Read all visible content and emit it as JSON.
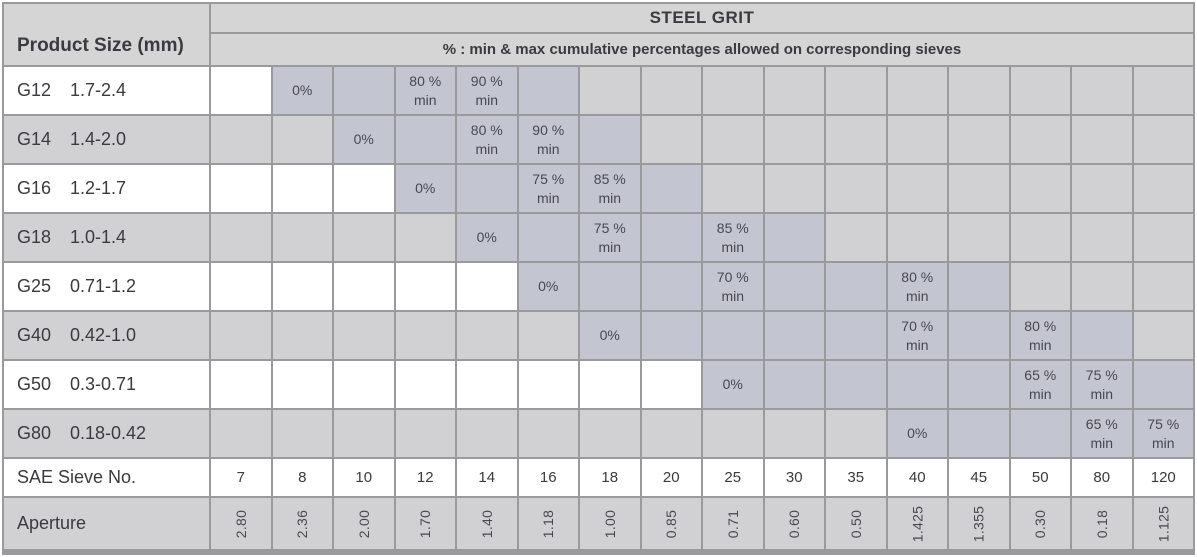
{
  "header": {
    "corner_label": "Product Size (mm)",
    "title": "STEEL GRIT",
    "subtitle": "% : min & max cumulative percentages allowed on corresponding sieves"
  },
  "rows": [
    {
      "grade": "G12",
      "range": "1.7-2.4",
      "stripe": "white",
      "cells": [
        {
          "s": "white"
        },
        {
          "s": "on",
          "text": "0%"
        },
        {
          "s": "on"
        },
        {
          "s": "on",
          "text": "80 %\nmin"
        },
        {
          "s": "on",
          "text": "90 %\nmin"
        },
        {
          "s": "on"
        },
        {
          "s": "off"
        },
        {
          "s": "off"
        },
        {
          "s": "off"
        },
        {
          "s": "off"
        },
        {
          "s": "off"
        },
        {
          "s": "off"
        },
        {
          "s": "off"
        },
        {
          "s": "off"
        },
        {
          "s": "off"
        },
        {
          "s": "off"
        }
      ]
    },
    {
      "grade": "G14",
      "range": "1.4-2.0",
      "stripe": "off",
      "cells": [
        {
          "s": "off"
        },
        {
          "s": "off"
        },
        {
          "s": "on",
          "text": "0%"
        },
        {
          "s": "on"
        },
        {
          "s": "on",
          "text": "80 %\nmin"
        },
        {
          "s": "on",
          "text": "90 %\nmin"
        },
        {
          "s": "on"
        },
        {
          "s": "off"
        },
        {
          "s": "off"
        },
        {
          "s": "off"
        },
        {
          "s": "off"
        },
        {
          "s": "off"
        },
        {
          "s": "off"
        },
        {
          "s": "off"
        },
        {
          "s": "off"
        },
        {
          "s": "off"
        }
      ]
    },
    {
      "grade": "G16",
      "range": "1.2-1.7",
      "stripe": "white",
      "cells": [
        {
          "s": "white"
        },
        {
          "s": "white"
        },
        {
          "s": "white"
        },
        {
          "s": "on",
          "text": "0%"
        },
        {
          "s": "on"
        },
        {
          "s": "on",
          "text": "75 %\nmin"
        },
        {
          "s": "on",
          "text": "85 %\nmin"
        },
        {
          "s": "on"
        },
        {
          "s": "off"
        },
        {
          "s": "off"
        },
        {
          "s": "off"
        },
        {
          "s": "off"
        },
        {
          "s": "off"
        },
        {
          "s": "off"
        },
        {
          "s": "off"
        },
        {
          "s": "off"
        }
      ]
    },
    {
      "grade": "G18",
      "range": "1.0-1.4",
      "stripe": "off",
      "cells": [
        {
          "s": "off"
        },
        {
          "s": "off"
        },
        {
          "s": "off"
        },
        {
          "s": "off"
        },
        {
          "s": "on",
          "text": "0%"
        },
        {
          "s": "on"
        },
        {
          "s": "on",
          "text": "75 %\nmin"
        },
        {
          "s": "on"
        },
        {
          "s": "on",
          "text": "85 %\nmin"
        },
        {
          "s": "on"
        },
        {
          "s": "off"
        },
        {
          "s": "off"
        },
        {
          "s": "off"
        },
        {
          "s": "off"
        },
        {
          "s": "off"
        },
        {
          "s": "off"
        }
      ]
    },
    {
      "grade": "G25",
      "range": "0.71-1.2",
      "stripe": "white",
      "cells": [
        {
          "s": "white"
        },
        {
          "s": "white"
        },
        {
          "s": "white"
        },
        {
          "s": "white"
        },
        {
          "s": "white"
        },
        {
          "s": "on",
          "text": "0%"
        },
        {
          "s": "on"
        },
        {
          "s": "on"
        },
        {
          "s": "on",
          "text": "70 %\nmin"
        },
        {
          "s": "on"
        },
        {
          "s": "on"
        },
        {
          "s": "on",
          "text": "80 %\nmin"
        },
        {
          "s": "on"
        },
        {
          "s": "off"
        },
        {
          "s": "off"
        },
        {
          "s": "off"
        }
      ]
    },
    {
      "grade": "G40",
      "range": "0.42-1.0",
      "stripe": "off",
      "cells": [
        {
          "s": "off"
        },
        {
          "s": "off"
        },
        {
          "s": "off"
        },
        {
          "s": "off"
        },
        {
          "s": "off"
        },
        {
          "s": "off"
        },
        {
          "s": "on",
          "text": "0%"
        },
        {
          "s": "on"
        },
        {
          "s": "on"
        },
        {
          "s": "on"
        },
        {
          "s": "on"
        },
        {
          "s": "on",
          "text": "70 %\nmin"
        },
        {
          "s": "on"
        },
        {
          "s": "on",
          "text": "80 %\nmin"
        },
        {
          "s": "on"
        },
        {
          "s": "off"
        }
      ]
    },
    {
      "grade": "G50",
      "range": "0.3-0.71",
      "stripe": "white",
      "cells": [
        {
          "s": "white"
        },
        {
          "s": "white"
        },
        {
          "s": "white"
        },
        {
          "s": "white"
        },
        {
          "s": "white"
        },
        {
          "s": "white"
        },
        {
          "s": "white"
        },
        {
          "s": "white"
        },
        {
          "s": "on",
          "text": "0%"
        },
        {
          "s": "on"
        },
        {
          "s": "on"
        },
        {
          "s": "on"
        },
        {
          "s": "on"
        },
        {
          "s": "on",
          "text": "65 %\nmin"
        },
        {
          "s": "on",
          "text": "75 %\nmin"
        },
        {
          "s": "on"
        }
      ]
    },
    {
      "grade": "G80",
      "range": "0.18-0.42",
      "stripe": "off",
      "cells": [
        {
          "s": "off"
        },
        {
          "s": "off"
        },
        {
          "s": "off"
        },
        {
          "s": "off"
        },
        {
          "s": "off"
        },
        {
          "s": "off"
        },
        {
          "s": "off"
        },
        {
          "s": "off"
        },
        {
          "s": "off"
        },
        {
          "s": "off"
        },
        {
          "s": "off"
        },
        {
          "s": "on",
          "text": "0%"
        },
        {
          "s": "on"
        },
        {
          "s": "on"
        },
        {
          "s": "on",
          "text": "65 %\nmin"
        },
        {
          "s": "on",
          "text": "75 %\nmin"
        }
      ]
    }
  ],
  "sieves": {
    "label": "SAE Sieve No.",
    "numbers": [
      "7",
      "8",
      "10",
      "12",
      "14",
      "16",
      "18",
      "20",
      "25",
      "30",
      "35",
      "40",
      "45",
      "50",
      "80",
      "120"
    ],
    "aperture_label": "Aperture",
    "apertures": [
      "2.80",
      "2.36",
      "2.00",
      "1.70",
      "1.40",
      "1.18",
      "1.00",
      "0.85",
      "0.71",
      "0.60",
      "0.50",
      "1.425",
      "1.355",
      "0.30",
      "0.18",
      "1.125"
    ]
  },
  "colors": {
    "border": "#9a9a9c",
    "header": "#d5d5d6",
    "off": "#d1d1d3",
    "on": "#c3c5d1",
    "white": "#ffffff",
    "text": "#3a3a40",
    "text-soft": "#48484e"
  }
}
